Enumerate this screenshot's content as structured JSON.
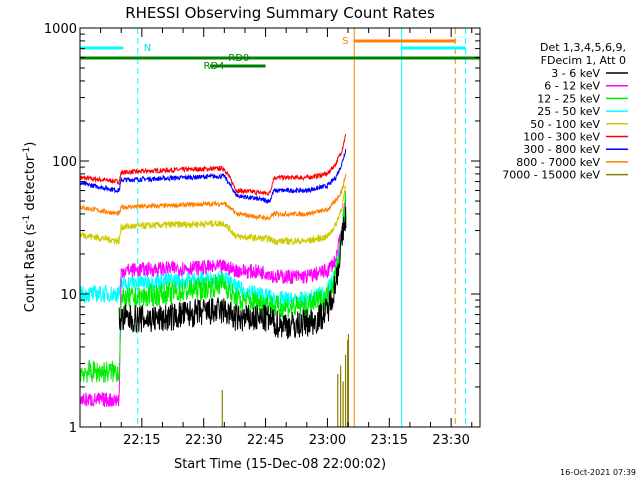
{
  "chart_data": {
    "type": "line",
    "title": "RHESSI Observing Summary Count Rates",
    "xlabel": "Start Time (15-Dec-08 22:00:02)",
    "ylabel_pre": "Count Rate (s",
    "ylabel_sup1": "-1",
    "ylabel_mid": " detector",
    "ylabel_sup2": "-1",
    "ylabel_post": ")",
    "y_scale": "log",
    "ylim": [
      1,
      1000
    ],
    "y_ticks": [
      {
        "v": 1,
        "label": "1"
      },
      {
        "v": 10,
        "label": "10"
      },
      {
        "v": 100,
        "label": "100"
      },
      {
        "v": 1000,
        "label": "1000"
      }
    ],
    "xlim_minutes": [
      0,
      97
    ],
    "x_ticks": [
      {
        "t": 15,
        "label": "22:15"
      },
      {
        "t": 30,
        "label": "22:30"
      },
      {
        "t": 45,
        "label": "22:45"
      },
      {
        "t": 60,
        "label": "23:00"
      },
      {
        "t": 75,
        "label": "23:15"
      },
      {
        "t": 90,
        "label": "23:30"
      }
    ],
    "legend_title": [
      "Det 1,3,4,5,6,9,",
      "FDecim 1, Att 0"
    ],
    "legend_placement": "right",
    "timestamp": "16-Oct-2021 07:39",
    "grid": false,
    "series": [
      {
        "name": "3 - 6 keV",
        "color": "#000000",
        "x": [
          9.5,
          10,
          20,
          25,
          35,
          38,
          46,
          47,
          52,
          57,
          60,
          62,
          63.5,
          64.5
        ],
        "y": [
          6.5,
          6.5,
          6.5,
          7.0,
          7.5,
          6.5,
          6.5,
          6.0,
          5.8,
          6.3,
          7.5,
          12,
          25,
          40
        ],
        "noise": 0.25
      },
      {
        "name": "6 - 12 keV",
        "color": "#ff00ff",
        "x": [
          0,
          9.5,
          10,
          20,
          35,
          38,
          46,
          47,
          55,
          60,
          62,
          63.5,
          64.5
        ],
        "y": [
          1.6,
          1.6,
          15,
          15.5,
          16,
          15,
          14.5,
          13.5,
          13.5,
          15,
          18,
          30,
          55
        ],
        "noise": 0.13
      },
      {
        "name": "12 - 25 keV",
        "color": "#00ee00",
        "x": [
          0,
          9.5,
          10,
          20,
          30,
          35,
          38,
          46,
          47,
          55,
          60,
          62,
          63.5,
          64.5
        ],
        "y": [
          2.6,
          2.6,
          9,
          10,
          11,
          12,
          9,
          8.5,
          8,
          8,
          9.5,
          14,
          28,
          55
        ],
        "noise": 0.2
      },
      {
        "name": "25 - 50 keV",
        "color": "#00ffff",
        "x": [
          0,
          9.5,
          10,
          20,
          35,
          38,
          46,
          47,
          55,
          60,
          62,
          63.5,
          64.5
        ],
        "y": [
          10,
          10,
          12,
          12.5,
          13,
          11,
          9.5,
          9,
          9,
          10.5,
          14,
          25,
          50
        ],
        "noise": 0.15
      },
      {
        "name": "50 - 100 keV",
        "color": "#cccc00",
        "x": [
          0,
          9.5,
          10,
          20,
          35,
          38,
          46,
          47,
          55,
          60,
          62,
          63.5,
          64.5
        ],
        "y": [
          28,
          25,
          32,
          33,
          34,
          27,
          26,
          25,
          25,
          27,
          33,
          45,
          65
        ],
        "noise": 0.06
      },
      {
        "name": "100 - 300 keV",
        "color": "#ff0000",
        "x": [
          0,
          9.5,
          10,
          20,
          35,
          38,
          46,
          47,
          55,
          60,
          62,
          63.5,
          64.5
        ],
        "y": [
          75,
          70,
          82,
          85,
          88,
          60,
          57,
          75,
          75,
          80,
          95,
          120,
          160
        ],
        "noise": 0.04
      },
      {
        "name": "300 - 800 keV",
        "color": "#0000ff",
        "x": [
          0,
          9.5,
          10,
          20,
          35,
          38,
          46,
          47,
          55,
          60,
          62,
          63.5,
          64.5
        ],
        "y": [
          68,
          60,
          72,
          74,
          77,
          55,
          50,
          60,
          60,
          65,
          75,
          95,
          125
        ],
        "noise": 0.04
      },
      {
        "name": "800 - 7000 keV",
        "color": "#ff8000",
        "x": [
          0,
          9.5,
          10,
          20,
          35,
          38,
          46,
          47,
          55,
          60,
          62,
          63.5,
          64.5
        ],
        "y": [
          45,
          40,
          45,
          46,
          48,
          40,
          37,
          40,
          40,
          43,
          50,
          60,
          80
        ],
        "noise": 0.04
      },
      {
        "name": "7000 - 15000 keV",
        "color": "#8b8000",
        "spikes": [
          {
            "t": 34.5,
            "v": 1.9
          },
          {
            "t": 62.5,
            "v": 2.5
          },
          {
            "t": 63.2,
            "v": 2.9
          },
          {
            "t": 63.8,
            "v": 2.2
          },
          {
            "t": 64.4,
            "v": 3.5
          },
          {
            "t": 64.9,
            "v": 4.5
          },
          {
            "t": 65.1,
            "v": 5.0
          }
        ]
      }
    ],
    "markers": {
      "sun_n_label": "N",
      "saa_s_label": "S",
      "rd0_label": "RD0",
      "rd4_label": "RD4",
      "night_spans": [
        {
          "from": 0,
          "to": 10.5
        },
        {
          "from": 78,
          "to": 93.5
        }
      ],
      "saa_spans": [
        {
          "from": 66.5,
          "to": 91
        }
      ],
      "attenuator_span": {
        "from": 0,
        "to": 97
      },
      "decimation_span": {
        "from": 31.5,
        "to": 45
      }
    },
    "vertical_lines": [
      {
        "t": 0,
        "color": "#00ffff",
        "dash": false
      },
      {
        "t": 14,
        "color": "#00ffff",
        "dash": true
      },
      {
        "t": 66.5,
        "color": "#ff8000",
        "dash": false
      },
      {
        "t": 78,
        "color": "#00ffff",
        "dash": false
      },
      {
        "t": 91,
        "color": "#ff8000",
        "dash": true
      },
      {
        "t": 93.5,
        "color": "#00ffff",
        "dash": true
      }
    ]
  }
}
